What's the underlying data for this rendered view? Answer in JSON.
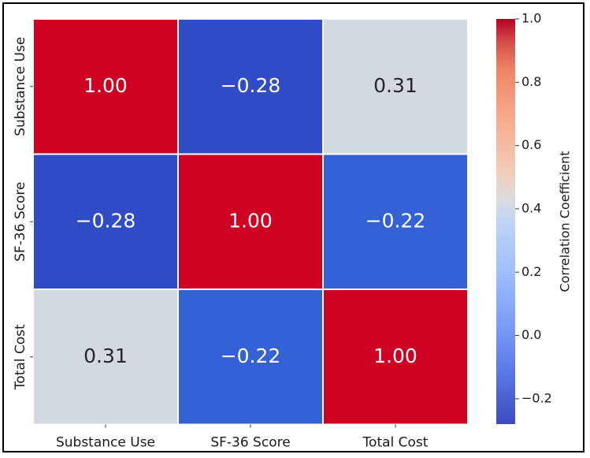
{
  "chart_data": {
    "type": "heatmap",
    "title": "",
    "x_categories": [
      "Substance Use",
      "SF-36 Score",
      "Total Cost"
    ],
    "y_categories": [
      "Substance Use",
      "SF-36 Score",
      "Total Cost"
    ],
    "values": [
      [
        1.0,
        -0.28,
        0.31
      ],
      [
        -0.28,
        1.0,
        -0.22
      ],
      [
        0.31,
        -0.22,
        1.0
      ]
    ],
    "cell_labels": [
      [
        "1.00",
        "−0.28",
        "0.31"
      ],
      [
        "−0.28",
        "1.00",
        "−0.22"
      ],
      [
        "0.31",
        "−0.22",
        "1.00"
      ]
    ],
    "colormap": "coolwarm",
    "vmin": -0.28,
    "vmax": 1.0,
    "colorbar": {
      "label": "Correlation Coefficient",
      "ticks": [
        1.0,
        0.8,
        0.6,
        0.4,
        0.2,
        0.0,
        -0.2
      ],
      "tick_labels": [
        "1.0",
        "0.8",
        "0.6",
        "0.4",
        "0.2",
        "0.0",
        "−0.2"
      ]
    },
    "cell_border_color": "#ffffff"
  }
}
